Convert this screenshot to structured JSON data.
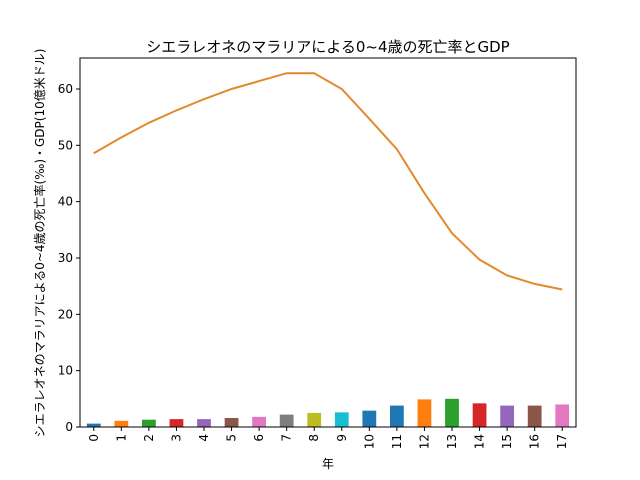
{
  "chart_data": {
    "type": "bar+line",
    "title": "シエラレオネのマラリアによる0~4歳の死亡率とGDP",
    "xlabel": "年",
    "ylabel": "シエラレオネのマラリアによる0~4歳の死亡率(‰)・GDP(10億米ドル)",
    "categories": [
      "0",
      "1",
      "2",
      "3",
      "4",
      "5",
      "6",
      "7",
      "8",
      "9",
      "10",
      "11",
      "12",
      "13",
      "14",
      "15",
      "16",
      "17"
    ],
    "ylim": [
      0,
      65.5
    ],
    "yticks": [
      0,
      10,
      20,
      30,
      40,
      50,
      60
    ],
    "grid": false,
    "bar_series": {
      "values": [
        0.6,
        1.1,
        1.3,
        1.4,
        1.4,
        1.6,
        1.8,
        2.2,
        2.5,
        2.6,
        2.9,
        3.8,
        4.9,
        5.0,
        4.2,
        3.8,
        3.8,
        4.0
      ],
      "colors": [
        "#1f77b4",
        "#ff7f0e",
        "#2ca02c",
        "#d62728",
        "#9467bd",
        "#8c564b",
        "#e377c2",
        "#7f7f7f",
        "#bcbd22",
        "#17becf",
        "#1f77b4",
        "#1f77b4",
        "#ff7f0e",
        "#2ca02c",
        "#d62728",
        "#9467bd",
        "#8c564b",
        "#e377c2"
      ]
    },
    "line_series": {
      "color": "#e08a2c",
      "values": [
        48.6,
        51.4,
        54.0,
        56.2,
        58.2,
        60.0,
        61.4,
        62.8,
        62.8,
        60.0,
        54.7,
        49.3,
        41.5,
        34.4,
        29.7,
        26.9,
        25.4,
        24.4
      ]
    }
  }
}
